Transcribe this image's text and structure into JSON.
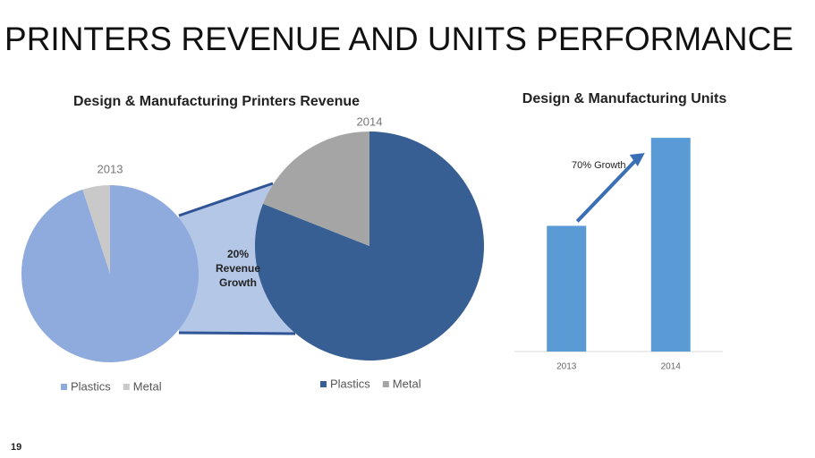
{
  "title": "PRINTERS REVENUE AND UNITS PERFORMANCE",
  "page_number": 19,
  "chart_data": [
    {
      "type": "pie",
      "title": "Design & Manufacturing Printers Revenue",
      "label": "2013",
      "annotation": [
        "20%",
        "Revenue",
        "Growth"
      ],
      "categories": [
        "Plastics",
        "Metal"
      ],
      "values": [
        95,
        5
      ],
      "colors": [
        "#8faadc",
        "#c9c9c9"
      ]
    },
    {
      "type": "pie",
      "label": "2014",
      "categories": [
        "Plastics",
        "Metal"
      ],
      "values": [
        81,
        19
      ],
      "colors": [
        "#375f93",
        "#a5a5a5"
      ]
    },
    {
      "type": "bar",
      "title": "Design & Manufacturing Units",
      "annotation": "70% Growth",
      "categories": [
        "2013",
        "2014"
      ],
      "values": [
        100,
        170
      ],
      "ylim": [
        0,
        180
      ],
      "color": "#5b9bd5"
    }
  ]
}
